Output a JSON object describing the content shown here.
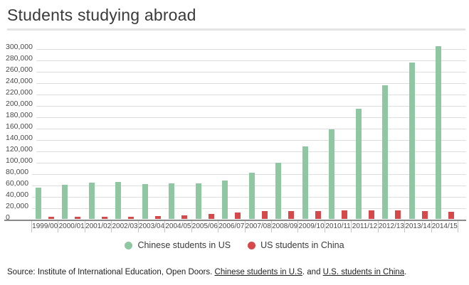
{
  "header": {
    "title": "Students studying abroad"
  },
  "chart_data": {
    "type": "bar",
    "title": "Students studying abroad",
    "categories": [
      "1999/00",
      "2000/01",
      "2001/02",
      "2002/03",
      "2003/04",
      "2004/05",
      "2005/06",
      "2006/07",
      "2007/08",
      "2008/09",
      "2009/10",
      "2010/11",
      "2011/12",
      "2012/13",
      "2013/14",
      "2014/15"
    ],
    "series": [
      {
        "name": "Chinese students in US",
        "color": "#8fc7a3",
        "values": [
          54466,
          59939,
          63211,
          64757,
          61765,
          62523,
          62582,
          67723,
          81127,
          98235,
          127628,
          157558,
          194029,
          235597,
          274439,
          304040
        ]
      },
      {
        "name": "US students in China",
        "color": "#d6494a",
        "values": [
          2949,
          2942,
          3911,
          2493,
          4737,
          6391,
          8830,
          11064,
          13165,
          13674,
          13910,
          14596,
          14887,
          14413,
          13763,
          12790
        ]
      }
    ],
    "xlabel": "",
    "ylabel": "",
    "ylim": [
      0,
      307500
    ],
    "grid": true,
    "legend_position": "bottom",
    "y_ticks": [
      {
        "value": 0,
        "label": "0"
      },
      {
        "value": 20000,
        "label": "20,000"
      },
      {
        "value": 40000,
        "label": "40,000"
      },
      {
        "value": 60000,
        "label": "60,000"
      },
      {
        "value": 80000,
        "label": "80,000"
      },
      {
        "value": 100000,
        "label": "100,000"
      },
      {
        "value": 120000,
        "label": "120,000"
      },
      {
        "value": 140000,
        "label": "140,000"
      },
      {
        "value": 160000,
        "label": "160,000"
      },
      {
        "value": 180000,
        "label": "180,000"
      },
      {
        "value": 200000,
        "label": "200,000"
      },
      {
        "value": 220000,
        "label": "220,000"
      },
      {
        "value": 240000,
        "label": "240,000"
      },
      {
        "value": 260000,
        "label": "260,000"
      },
      {
        "value": 280000,
        "label": "280,000"
      },
      {
        "value": 300000,
        "label": "300,000"
      }
    ]
  },
  "source": {
    "prefix": "Source: Institute of International Education, Open Doors. ",
    "link1": "Chinese students in U.S",
    "sep1": ". and ",
    "link2": "U.S. students in China",
    "suffix": "."
  }
}
